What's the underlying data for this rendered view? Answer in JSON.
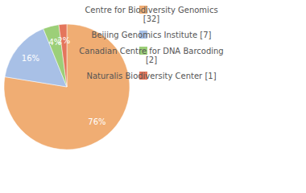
{
  "chart_data": {
    "type": "pie",
    "categories": [
      "Centre for Biodiversity Genomics [32]",
      "Beijing Genomics Institute [7]",
      "Canadian Centre for DNA Barcoding [2]",
      "Naturalis Biodiversity Center [1]"
    ],
    "values": [
      76,
      16,
      4,
      2
    ],
    "value_labels": [
      "76%",
      "16%",
      "4%",
      "2%"
    ],
    "colors": [
      "#f0ad73",
      "#a8c0e6",
      "#9ccf78",
      "#e4765c"
    ],
    "data_labels": true,
    "legend": "top-right"
  }
}
